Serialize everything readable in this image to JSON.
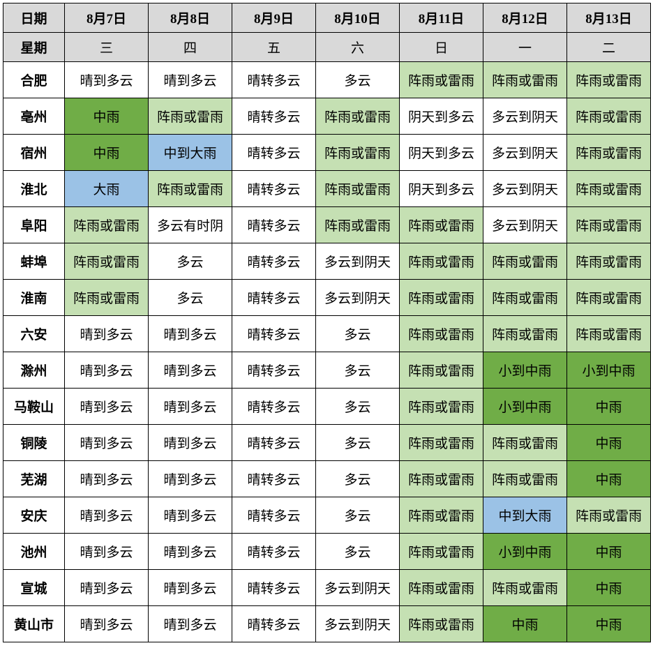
{
  "colors": {
    "header_bg": "#d9d9d9",
    "border": "#000000",
    "white": "#ffffff",
    "light_green": "#c5e0b3",
    "mid_green": "#70ad47",
    "blue": "#9bc2e6"
  },
  "header": {
    "date_label": "日期",
    "weekday_label": "星期",
    "dates": [
      "8月7日",
      "8月8日",
      "8月9日",
      "8月10日",
      "8月11日",
      "8月12日",
      "8月13日"
    ],
    "weekdays": [
      "三",
      "四",
      "五",
      "六",
      "日",
      "一",
      "二"
    ]
  },
  "rows": [
    {
      "city": "合肥",
      "cells": [
        {
          "text": "晴到多云",
          "bg": "#ffffff"
        },
        {
          "text": "晴到多云",
          "bg": "#ffffff"
        },
        {
          "text": "晴转多云",
          "bg": "#ffffff"
        },
        {
          "text": "多云",
          "bg": "#ffffff"
        },
        {
          "text": "阵雨或雷雨",
          "bg": "#c5e0b3"
        },
        {
          "text": "阵雨或雷雨",
          "bg": "#c5e0b3"
        },
        {
          "text": "阵雨或雷雨",
          "bg": "#c5e0b3"
        }
      ]
    },
    {
      "city": "亳州",
      "cells": [
        {
          "text": "中雨",
          "bg": "#70ad47"
        },
        {
          "text": "阵雨或雷雨",
          "bg": "#c5e0b3"
        },
        {
          "text": "晴转多云",
          "bg": "#ffffff"
        },
        {
          "text": "阵雨或雷雨",
          "bg": "#c5e0b3"
        },
        {
          "text": "阴天到多云",
          "bg": "#ffffff"
        },
        {
          "text": "多云到阴天",
          "bg": "#ffffff"
        },
        {
          "text": "阵雨或雷雨",
          "bg": "#c5e0b3"
        }
      ]
    },
    {
      "city": "宿州",
      "cells": [
        {
          "text": "中雨",
          "bg": "#70ad47"
        },
        {
          "text": "中到大雨",
          "bg": "#9bc2e6"
        },
        {
          "text": "晴转多云",
          "bg": "#ffffff"
        },
        {
          "text": "阵雨或雷雨",
          "bg": "#c5e0b3"
        },
        {
          "text": "阴天到多云",
          "bg": "#ffffff"
        },
        {
          "text": "多云到阴天",
          "bg": "#ffffff"
        },
        {
          "text": "阵雨或雷雨",
          "bg": "#c5e0b3"
        }
      ]
    },
    {
      "city": "淮北",
      "cells": [
        {
          "text": "大雨",
          "bg": "#9bc2e6"
        },
        {
          "text": "阵雨或雷雨",
          "bg": "#c5e0b3"
        },
        {
          "text": "晴转多云",
          "bg": "#ffffff"
        },
        {
          "text": "阵雨或雷雨",
          "bg": "#c5e0b3"
        },
        {
          "text": "阴天到多云",
          "bg": "#ffffff"
        },
        {
          "text": "多云到阴天",
          "bg": "#ffffff"
        },
        {
          "text": "阵雨或雷雨",
          "bg": "#c5e0b3"
        }
      ]
    },
    {
      "city": "阜阳",
      "cells": [
        {
          "text": "阵雨或雷雨",
          "bg": "#c5e0b3"
        },
        {
          "text": "多云有时阴",
          "bg": "#ffffff"
        },
        {
          "text": "晴转多云",
          "bg": "#ffffff"
        },
        {
          "text": "阵雨或雷雨",
          "bg": "#c5e0b3"
        },
        {
          "text": "阵雨或雷雨",
          "bg": "#c5e0b3"
        },
        {
          "text": "多云到阴天",
          "bg": "#ffffff"
        },
        {
          "text": "阵雨或雷雨",
          "bg": "#c5e0b3"
        }
      ]
    },
    {
      "city": "蚌埠",
      "cells": [
        {
          "text": "阵雨或雷雨",
          "bg": "#c5e0b3"
        },
        {
          "text": "多云",
          "bg": "#ffffff"
        },
        {
          "text": "晴转多云",
          "bg": "#ffffff"
        },
        {
          "text": "多云到阴天",
          "bg": "#ffffff"
        },
        {
          "text": "阵雨或雷雨",
          "bg": "#c5e0b3"
        },
        {
          "text": "阵雨或雷雨",
          "bg": "#c5e0b3"
        },
        {
          "text": "阵雨或雷雨",
          "bg": "#c5e0b3"
        }
      ]
    },
    {
      "city": "淮南",
      "cells": [
        {
          "text": "阵雨或雷雨",
          "bg": "#c5e0b3"
        },
        {
          "text": "多云",
          "bg": "#ffffff"
        },
        {
          "text": "晴转多云",
          "bg": "#ffffff"
        },
        {
          "text": "多云到阴天",
          "bg": "#ffffff"
        },
        {
          "text": "阵雨或雷雨",
          "bg": "#c5e0b3"
        },
        {
          "text": "阵雨或雷雨",
          "bg": "#c5e0b3"
        },
        {
          "text": "阵雨或雷雨",
          "bg": "#c5e0b3"
        }
      ]
    },
    {
      "city": "六安",
      "cells": [
        {
          "text": "晴到多云",
          "bg": "#ffffff"
        },
        {
          "text": "晴到多云",
          "bg": "#ffffff"
        },
        {
          "text": "晴转多云",
          "bg": "#ffffff"
        },
        {
          "text": "多云",
          "bg": "#ffffff"
        },
        {
          "text": "阵雨或雷雨",
          "bg": "#c5e0b3"
        },
        {
          "text": "阵雨或雷雨",
          "bg": "#c5e0b3"
        },
        {
          "text": "阵雨或雷雨",
          "bg": "#c5e0b3"
        }
      ]
    },
    {
      "city": "滁州",
      "cells": [
        {
          "text": "晴到多云",
          "bg": "#ffffff"
        },
        {
          "text": "晴到多云",
          "bg": "#ffffff"
        },
        {
          "text": "晴转多云",
          "bg": "#ffffff"
        },
        {
          "text": "多云",
          "bg": "#ffffff"
        },
        {
          "text": "阵雨或雷雨",
          "bg": "#c5e0b3"
        },
        {
          "text": "小到中雨",
          "bg": "#70ad47"
        },
        {
          "text": "小到中雨",
          "bg": "#70ad47"
        }
      ]
    },
    {
      "city": "马鞍山",
      "cells": [
        {
          "text": "晴到多云",
          "bg": "#ffffff"
        },
        {
          "text": "晴到多云",
          "bg": "#ffffff"
        },
        {
          "text": "晴转多云",
          "bg": "#ffffff"
        },
        {
          "text": "多云",
          "bg": "#ffffff"
        },
        {
          "text": "阵雨或雷雨",
          "bg": "#c5e0b3"
        },
        {
          "text": "小到中雨",
          "bg": "#70ad47"
        },
        {
          "text": "中雨",
          "bg": "#70ad47"
        }
      ]
    },
    {
      "city": "铜陵",
      "cells": [
        {
          "text": "晴到多云",
          "bg": "#ffffff"
        },
        {
          "text": "晴到多云",
          "bg": "#ffffff"
        },
        {
          "text": "晴转多云",
          "bg": "#ffffff"
        },
        {
          "text": "多云",
          "bg": "#ffffff"
        },
        {
          "text": "阵雨或雷雨",
          "bg": "#c5e0b3"
        },
        {
          "text": "阵雨或雷雨",
          "bg": "#c5e0b3"
        },
        {
          "text": "中雨",
          "bg": "#70ad47"
        }
      ]
    },
    {
      "city": "芜湖",
      "cells": [
        {
          "text": "晴到多云",
          "bg": "#ffffff"
        },
        {
          "text": "晴到多云",
          "bg": "#ffffff"
        },
        {
          "text": "晴转多云",
          "bg": "#ffffff"
        },
        {
          "text": "多云",
          "bg": "#ffffff"
        },
        {
          "text": "阵雨或雷雨",
          "bg": "#c5e0b3"
        },
        {
          "text": "阵雨或雷雨",
          "bg": "#c5e0b3"
        },
        {
          "text": "中雨",
          "bg": "#70ad47"
        }
      ]
    },
    {
      "city": "安庆",
      "cells": [
        {
          "text": "晴到多云",
          "bg": "#ffffff"
        },
        {
          "text": "晴到多云",
          "bg": "#ffffff"
        },
        {
          "text": "晴转多云",
          "bg": "#ffffff"
        },
        {
          "text": "多云",
          "bg": "#ffffff"
        },
        {
          "text": "阵雨或雷雨",
          "bg": "#c5e0b3"
        },
        {
          "text": "中到大雨",
          "bg": "#9bc2e6"
        },
        {
          "text": "阵雨或雷雨",
          "bg": "#c5e0b3"
        }
      ]
    },
    {
      "city": "池州",
      "cells": [
        {
          "text": "晴到多云",
          "bg": "#ffffff"
        },
        {
          "text": "晴到多云",
          "bg": "#ffffff"
        },
        {
          "text": "晴转多云",
          "bg": "#ffffff"
        },
        {
          "text": "多云",
          "bg": "#ffffff"
        },
        {
          "text": "阵雨或雷雨",
          "bg": "#c5e0b3"
        },
        {
          "text": "小到中雨",
          "bg": "#70ad47"
        },
        {
          "text": "中雨",
          "bg": "#70ad47"
        }
      ]
    },
    {
      "city": "宣城",
      "cells": [
        {
          "text": "晴到多云",
          "bg": "#ffffff"
        },
        {
          "text": "晴到多云",
          "bg": "#ffffff"
        },
        {
          "text": "晴转多云",
          "bg": "#ffffff"
        },
        {
          "text": "多云到阴天",
          "bg": "#ffffff"
        },
        {
          "text": "阵雨或雷雨",
          "bg": "#c5e0b3"
        },
        {
          "text": "阵雨或雷雨",
          "bg": "#c5e0b3"
        },
        {
          "text": "中雨",
          "bg": "#70ad47"
        }
      ]
    },
    {
      "city": "黄山市",
      "cells": [
        {
          "text": "晴到多云",
          "bg": "#ffffff"
        },
        {
          "text": "晴到多云",
          "bg": "#ffffff"
        },
        {
          "text": "晴转多云",
          "bg": "#ffffff"
        },
        {
          "text": "多云到阴天",
          "bg": "#ffffff"
        },
        {
          "text": "阵雨或雷雨",
          "bg": "#c5e0b3"
        },
        {
          "text": "中雨",
          "bg": "#70ad47"
        },
        {
          "text": "中雨",
          "bg": "#70ad47"
        }
      ]
    }
  ]
}
